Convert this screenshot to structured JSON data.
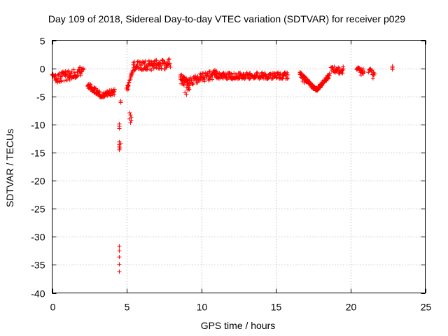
{
  "chart_data": {
    "type": "scatter",
    "title": "Day 109 of 2018, Sidereal Day-to-day VTEC variation (SDTVAR) for receiver p029",
    "xlabel": "GPS time / hours",
    "ylabel": "SDTVAR / TECUs",
    "xlim": [
      0,
      25
    ],
    "ylim": [
      -40,
      5
    ],
    "xticks": [
      0,
      5,
      10,
      15,
      20,
      25
    ],
    "yticks": [
      -40,
      -35,
      -30,
      -25,
      -20,
      -15,
      -10,
      -5,
      0,
      5
    ],
    "grid": true,
    "marker": "+",
    "color": "#ff0000",
    "series": [
      {
        "name": "p029",
        "segments": [
          {
            "x": [
              0.0,
              2.1
            ],
            "y": [
              -2.0,
              -0.5
            ],
            "n": 90,
            "spread": 0.9
          },
          {
            "x": [
              2.4,
              3.2
            ],
            "y": [
              -3.0,
              -4.6
            ],
            "n": 50,
            "spread": 0.5
          },
          {
            "x": [
              3.2,
              4.2
            ],
            "y": [
              -4.8,
              -4.2
            ],
            "n": 50,
            "spread": 0.5
          },
          {
            "x": [
              5.0,
              5.4
            ],
            "y": [
              -3.8,
              -0.3
            ],
            "n": 20,
            "spread": 0.4
          },
          {
            "x": [
              5.4,
              7.9
            ],
            "y": [
              0.3,
              0.8
            ],
            "n": 110,
            "spread": 0.9
          },
          {
            "x": [
              8.6,
              9.2
            ],
            "y": [
              -1.8,
              -3.0
            ],
            "n": 45,
            "spread": 0.9
          },
          {
            "x": [
              9.2,
              11.0
            ],
            "y": [
              -2.2,
              -1.0
            ],
            "n": 75,
            "spread": 0.8
          },
          {
            "x": [
              11.0,
              15.8
            ],
            "y": [
              -1.4,
              -1.3
            ],
            "n": 200,
            "spread": 0.6
          },
          {
            "x": [
              16.6,
              17.7
            ],
            "y": [
              -1.0,
              -3.9
            ],
            "n": 70,
            "spread": 0.35
          },
          {
            "x": [
              17.7,
              18.6
            ],
            "y": [
              -3.9,
              -1.2
            ],
            "n": 60,
            "spread": 0.35
          },
          {
            "x": [
              18.7,
              19.5
            ],
            "y": [
              -0.2,
              -0.5
            ],
            "n": 30,
            "spread": 0.6
          },
          {
            "x": [
              20.4,
              20.9
            ],
            "y": [
              0.0,
              -0.5
            ],
            "n": 20,
            "spread": 0.5
          },
          {
            "x": [
              21.2,
              21.6
            ],
            "y": [
              -0.4,
              -1.0
            ],
            "n": 15,
            "spread": 0.5
          }
        ],
        "points": [
          [
            4.6,
            -5.8
          ],
          [
            4.6,
            -6.1
          ],
          [
            4.5,
            -9.9
          ],
          [
            4.5,
            -10.3
          ],
          [
            4.5,
            -10.7
          ],
          [
            4.5,
            -13.1
          ],
          [
            4.5,
            -13.6
          ],
          [
            4.5,
            -14.0
          ],
          [
            4.5,
            -14.5
          ],
          [
            4.6,
            -13.4
          ],
          [
            4.55,
            -14.2
          ],
          [
            4.5,
            -31.7
          ],
          [
            4.5,
            -32.5
          ],
          [
            4.5,
            -33.6
          ],
          [
            4.5,
            -34.9
          ],
          [
            4.5,
            -36.2
          ],
          [
            5.2,
            -7.9
          ],
          [
            5.25,
            -8.3
          ],
          [
            5.3,
            -8.7
          ],
          [
            5.2,
            -9.0
          ],
          [
            5.3,
            -9.3
          ],
          [
            5.25,
            -9.7
          ],
          [
            5.1,
            -3.2
          ],
          [
            5.1,
            -3.7
          ],
          [
            8.9,
            -4.3
          ],
          [
            9.0,
            -4.7
          ],
          [
            9.1,
            -3.9
          ],
          [
            16.8,
            -2.3
          ],
          [
            16.9,
            -2.6
          ],
          [
            19.5,
            0.3
          ],
          [
            19.4,
            -0.8
          ],
          [
            22.8,
            0.4
          ],
          [
            22.8,
            0.1
          ],
          [
            22.8,
            -0.2
          ],
          [
            21.5,
            -1.8
          ],
          [
            20.7,
            -1.2
          ]
        ]
      }
    ]
  }
}
